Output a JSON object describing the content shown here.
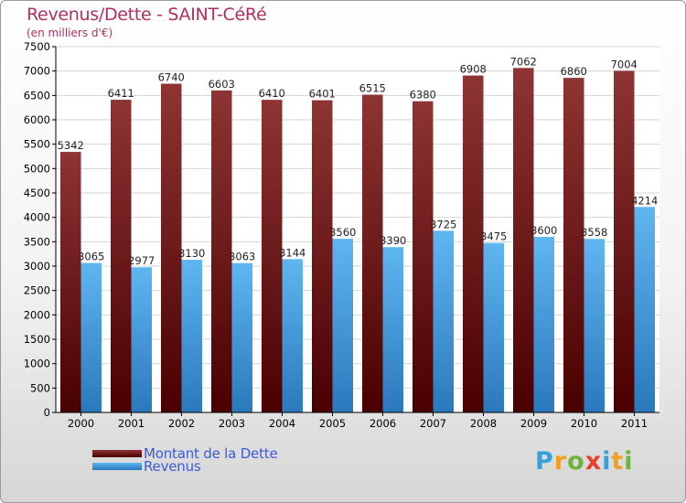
{
  "header": {
    "title": "Revenus/Dette - SAINT-CéRé",
    "subtitle": "(en milliers d'€)"
  },
  "brand": {
    "letters": [
      "P",
      "r",
      "o",
      "x",
      "i",
      "t",
      "i"
    ],
    "colors": [
      "#3aa0d8",
      "#f0a020",
      "#6db33f",
      "#e8402a",
      "#3aa0d8",
      "#f0a020",
      "#6db33f"
    ]
  },
  "chart_data": {
    "type": "bar",
    "title": "Revenus/Dette - SAINT-CéRé",
    "ylabel": "(en milliers d'€)",
    "categories": [
      "2000",
      "2001",
      "2002",
      "2003",
      "2004",
      "2005",
      "2006",
      "2007",
      "2008",
      "2009",
      "2010",
      "2011"
    ],
    "series": [
      {
        "name": "Montant de la Dette",
        "color": "#7a1515",
        "values": [
          5342,
          6411,
          6740,
          6603,
          6410,
          6401,
          6515,
          6380,
          6908,
          7062,
          6860,
          7004
        ]
      },
      {
        "name": "Revenus",
        "color": "#4aa3e6",
        "values": [
          3065,
          2977,
          3130,
          3063,
          3144,
          3560,
          3390,
          3725,
          3475,
          3600,
          3558,
          4214
        ]
      }
    ],
    "ylim": [
      0,
      7500
    ],
    "yticks": [
      0,
      500,
      1000,
      1500,
      2000,
      2500,
      3000,
      3500,
      4000,
      4500,
      5000,
      5500,
      6000,
      6500,
      7000,
      7500
    ],
    "grid": true,
    "legend": "bottom-left"
  }
}
